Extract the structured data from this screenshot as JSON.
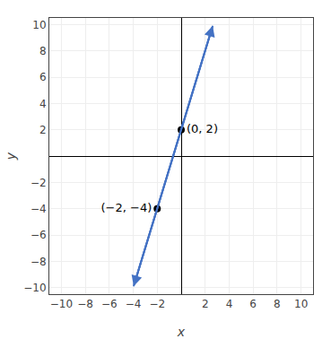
{
  "chart_data": {
    "type": "line",
    "xlabel": "x",
    "ylabel": "y",
    "xlim": [
      -11,
      11
    ],
    "ylim": [
      -10.5,
      10.5
    ],
    "xticks": [
      -10,
      -8,
      -6,
      -4,
      -2,
      2,
      4,
      6,
      8,
      10
    ],
    "yticks": [
      -10,
      -8,
      -6,
      -4,
      -2,
      2,
      4,
      6,
      8,
      10
    ],
    "grid": true,
    "series": [
      {
        "type": "line",
        "color": "#4472c4",
        "marker": "arrow",
        "x": [
          -3.97,
          2.63
        ],
        "values": [
          -9.9,
          9.9
        ]
      },
      {
        "type": "scatter",
        "color": "#000000",
        "x": [
          0,
          -2
        ],
        "values": [
          2,
          -4
        ],
        "value_labels": [
          "(0, 2)",
          "(−2, −4)"
        ]
      }
    ]
  }
}
